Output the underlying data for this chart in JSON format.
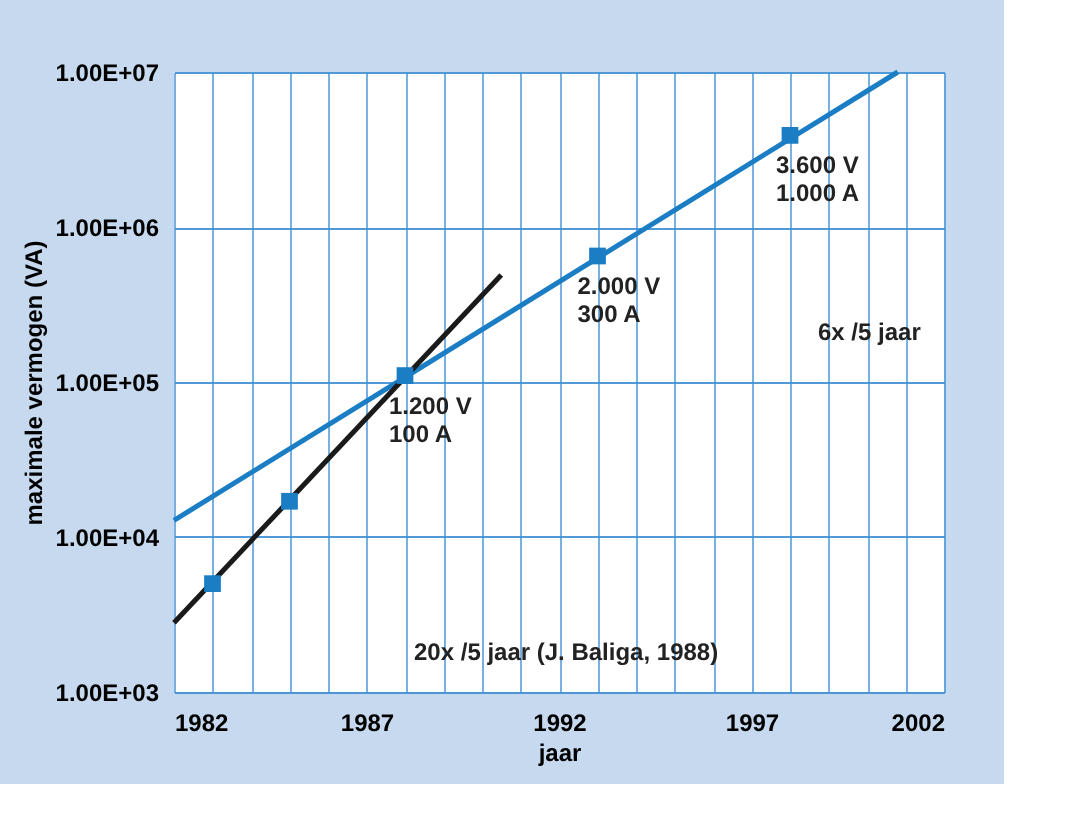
{
  "chart_data": {
    "type": "line",
    "xlabel": "jaar",
    "ylabel": "maximale vermogen (VA)",
    "series": [
      {
        "color": "#1b7dc4",
        "x": [
          1982,
          2000.8
        ],
        "values": [
          12800,
          10000000
        ]
      },
      {
        "color": "#1a1a1a",
        "x": [
          1982,
          1990.5
        ],
        "values": [
          2800,
          490000
        ]
      },
      {
        "type": "scatter",
        "color": "#1b7dc4",
        "marker": "square",
        "x": [
          1983,
          1985,
          1988,
          1993,
          1998
        ],
        "values": [
          5000,
          17000,
          110000,
          650000,
          3900000
        ]
      }
    ],
    "xlim": [
      1982,
      2002
    ],
    "xticks": [
      1982,
      {
        "value": 1983,
        "label": null
      },
      {
        "value": 1984,
        "label": null
      },
      {
        "value": 1985,
        "label": null
      },
      {
        "value": 1986,
        "label": null
      },
      1987,
      {
        "value": 1988,
        "label": null
      },
      {
        "value": 1989,
        "label": null
      },
      {
        "value": 1990,
        "label": null
      },
      {
        "value": 1991,
        "label": null
      },
      1992,
      {
        "value": 1993,
        "label": null
      },
      {
        "value": 1994,
        "label": null
      },
      {
        "value": 1995,
        "label": null
      },
      {
        "value": 1996,
        "label": null
      },
      1997,
      {
        "value": 1998,
        "label": null
      },
      {
        "value": 1999,
        "label": null
      },
      {
        "value": 2000,
        "label": null
      },
      {
        "value": 2001,
        "label": null
      },
      2002
    ],
    "ylim": [
      1000,
      10000000
    ],
    "yticks": [
      {
        "value": 1000,
        "label": "1.00E+03"
      },
      {
        "value": 10000,
        "label": "1.00E+04"
      },
      {
        "value": 100000,
        "label": "1.00E+05"
      },
      {
        "value": 1000000,
        "label": "1.00E+06"
      },
      {
        "value": 10000000,
        "label": "1.00E+07"
      }
    ],
    "log": "y",
    "grid": true,
    "line_style": "solid",
    "annotations": [
      {
        "text": "1.200 V\n100 A",
        "x": 1988,
        "y": 110000
      },
      {
        "text": "2.000 V\n300 A",
        "x": 1993,
        "y": 650000
      },
      {
        "text": "3.600 V\n1.000 A",
        "x": 1998,
        "y": 3900000
      },
      "6x /5 jaar",
      "20x /5 jaar (J. Baliga, 1988)"
    ]
  }
}
